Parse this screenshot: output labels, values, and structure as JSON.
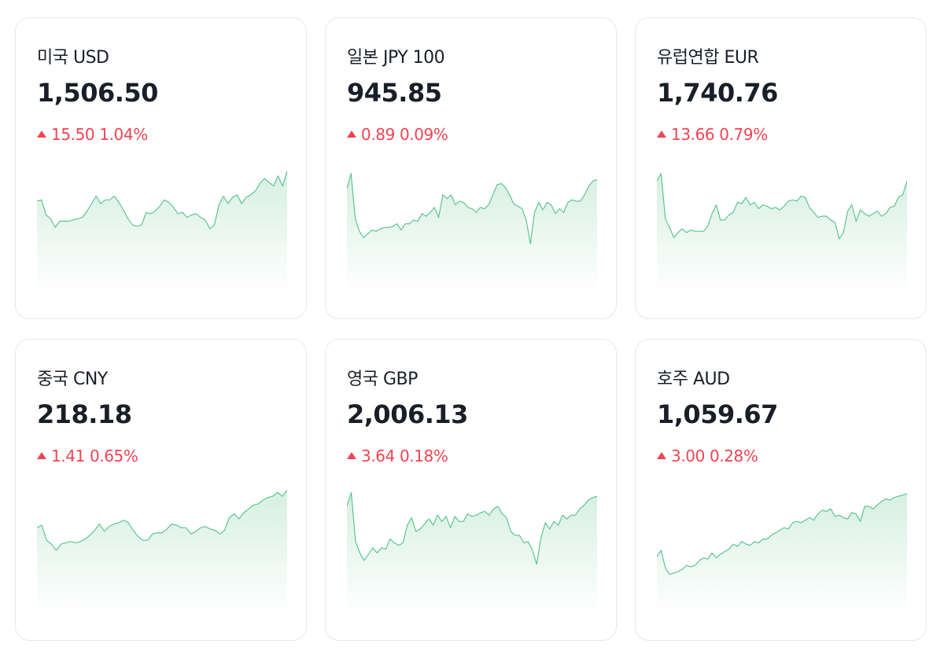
{
  "colors": {
    "up": "#f04452",
    "line": "#5cc690",
    "fill_top": "#d7efe1",
    "border": "#e5e8eb"
  },
  "cards": [
    {
      "name": "미국 USD",
      "price": "1,506.50",
      "change": "15.50",
      "rate": "1.04%",
      "direction": "up",
      "spark": [
        0.28,
        0.27,
        0.39,
        0.42,
        0.49,
        0.44,
        0.44,
        0.44,
        0.43,
        0.42,
        0.41,
        0.36,
        0.3,
        0.24,
        0.3,
        0.27,
        0.27,
        0.24,
        0.29,
        0.35,
        0.42,
        0.47,
        0.48,
        0.47,
        0.37,
        0.38,
        0.36,
        0.32,
        0.27,
        0.29,
        0.33,
        0.38,
        0.37,
        0.41,
        0.39,
        0.38,
        0.41,
        0.43,
        0.5,
        0.47,
        0.31,
        0.24,
        0.3,
        0.25,
        0.23,
        0.3,
        0.25,
        0.23,
        0.2,
        0.14,
        0.1,
        0.13,
        0.16,
        0.08,
        0.16,
        0.04
      ]
    },
    {
      "name": "일본 JPY 100",
      "price": "945.85",
      "change": "0.89",
      "rate": "0.09%",
      "direction": "up",
      "spark": [
        0.18,
        0.06,
        0.42,
        0.52,
        0.57,
        0.54,
        0.51,
        0.52,
        0.5,
        0.49,
        0.49,
        0.48,
        0.46,
        0.51,
        0.46,
        0.46,
        0.43,
        0.44,
        0.38,
        0.4,
        0.37,
        0.33,
        0.41,
        0.23,
        0.26,
        0.23,
        0.31,
        0.28,
        0.29,
        0.33,
        0.34,
        0.37,
        0.33,
        0.34,
        0.31,
        0.23,
        0.15,
        0.14,
        0.17,
        0.23,
        0.3,
        0.32,
        0.34,
        0.43,
        0.62,
        0.37,
        0.29,
        0.35,
        0.29,
        0.31,
        0.38,
        0.34,
        0.37,
        0.29,
        0.27,
        0.28,
        0.28,
        0.23,
        0.16,
        0.12,
        0.11
      ]
    },
    {
      "name": "유럽연합 EUR",
      "price": "1,740.76",
      "change": "13.66",
      "rate": "0.79%",
      "direction": "up",
      "spark": [
        0.12,
        0.06,
        0.42,
        0.49,
        0.57,
        0.53,
        0.5,
        0.53,
        0.51,
        0.52,
        0.52,
        0.52,
        0.48,
        0.38,
        0.31,
        0.43,
        0.43,
        0.39,
        0.37,
        0.29,
        0.3,
        0.25,
        0.31,
        0.29,
        0.34,
        0.31,
        0.32,
        0.34,
        0.33,
        0.35,
        0.32,
        0.28,
        0.27,
        0.28,
        0.24,
        0.25,
        0.33,
        0.37,
        0.41,
        0.4,
        0.4,
        0.43,
        0.45,
        0.58,
        0.53,
        0.36,
        0.31,
        0.44,
        0.35,
        0.38,
        0.4,
        0.38,
        0.36,
        0.4,
        0.38,
        0.33,
        0.32,
        0.25,
        0.23,
        0.12
      ]
    },
    {
      "name": "중국 CNY",
      "price": "218.18",
      "change": "1.41",
      "rate": "0.65%",
      "direction": "up",
      "spark": [
        0.32,
        0.3,
        0.42,
        0.45,
        0.5,
        0.45,
        0.44,
        0.43,
        0.44,
        0.43,
        0.41,
        0.38,
        0.34,
        0.29,
        0.35,
        0.31,
        0.29,
        0.28,
        0.26,
        0.28,
        0.34,
        0.39,
        0.42,
        0.42,
        0.37,
        0.36,
        0.36,
        0.33,
        0.29,
        0.3,
        0.32,
        0.32,
        0.37,
        0.35,
        0.32,
        0.31,
        0.33,
        0.34,
        0.37,
        0.34,
        0.24,
        0.21,
        0.25,
        0.2,
        0.17,
        0.14,
        0.13,
        0.1,
        0.08,
        0.07,
        0.04,
        0.07,
        0.02
      ]
    },
    {
      "name": "영국 GBP",
      "price": "2,006.13",
      "change": "3.64",
      "rate": "0.18%",
      "direction": "up",
      "spark": [
        0.15,
        0.04,
        0.43,
        0.52,
        0.58,
        0.53,
        0.48,
        0.52,
        0.48,
        0.49,
        0.41,
        0.44,
        0.46,
        0.44,
        0.3,
        0.24,
        0.35,
        0.33,
        0.29,
        0.25,
        0.3,
        0.22,
        0.27,
        0.23,
        0.32,
        0.23,
        0.27,
        0.27,
        0.21,
        0.23,
        0.22,
        0.2,
        0.19,
        0.22,
        0.17,
        0.15,
        0.21,
        0.24,
        0.35,
        0.38,
        0.38,
        0.44,
        0.43,
        0.5,
        0.61,
        0.4,
        0.28,
        0.33,
        0.27,
        0.3,
        0.22,
        0.25,
        0.22,
        0.22,
        0.17,
        0.14,
        0.1,
        0.08,
        0.07
      ]
    },
    {
      "name": "호주 AUD",
      "price": "1,059.67",
      "change": "3.00",
      "rate": "0.28%",
      "direction": "up",
      "spark": [
        0.55,
        0.5,
        0.64,
        0.69,
        0.68,
        0.67,
        0.65,
        0.62,
        0.63,
        0.62,
        0.58,
        0.56,
        0.57,
        0.52,
        0.56,
        0.53,
        0.51,
        0.49,
        0.45,
        0.47,
        0.43,
        0.45,
        0.46,
        0.43,
        0.44,
        0.41,
        0.41,
        0.38,
        0.36,
        0.34,
        0.32,
        0.33,
        0.28,
        0.27,
        0.28,
        0.26,
        0.24,
        0.26,
        0.21,
        0.18,
        0.19,
        0.17,
        0.23,
        0.22,
        0.24,
        0.25,
        0.2,
        0.21,
        0.27,
        0.15,
        0.15,
        0.17,
        0.14,
        0.11,
        0.09,
        0.1,
        0.08,
        0.07,
        0.06,
        0.05
      ]
    }
  ]
}
